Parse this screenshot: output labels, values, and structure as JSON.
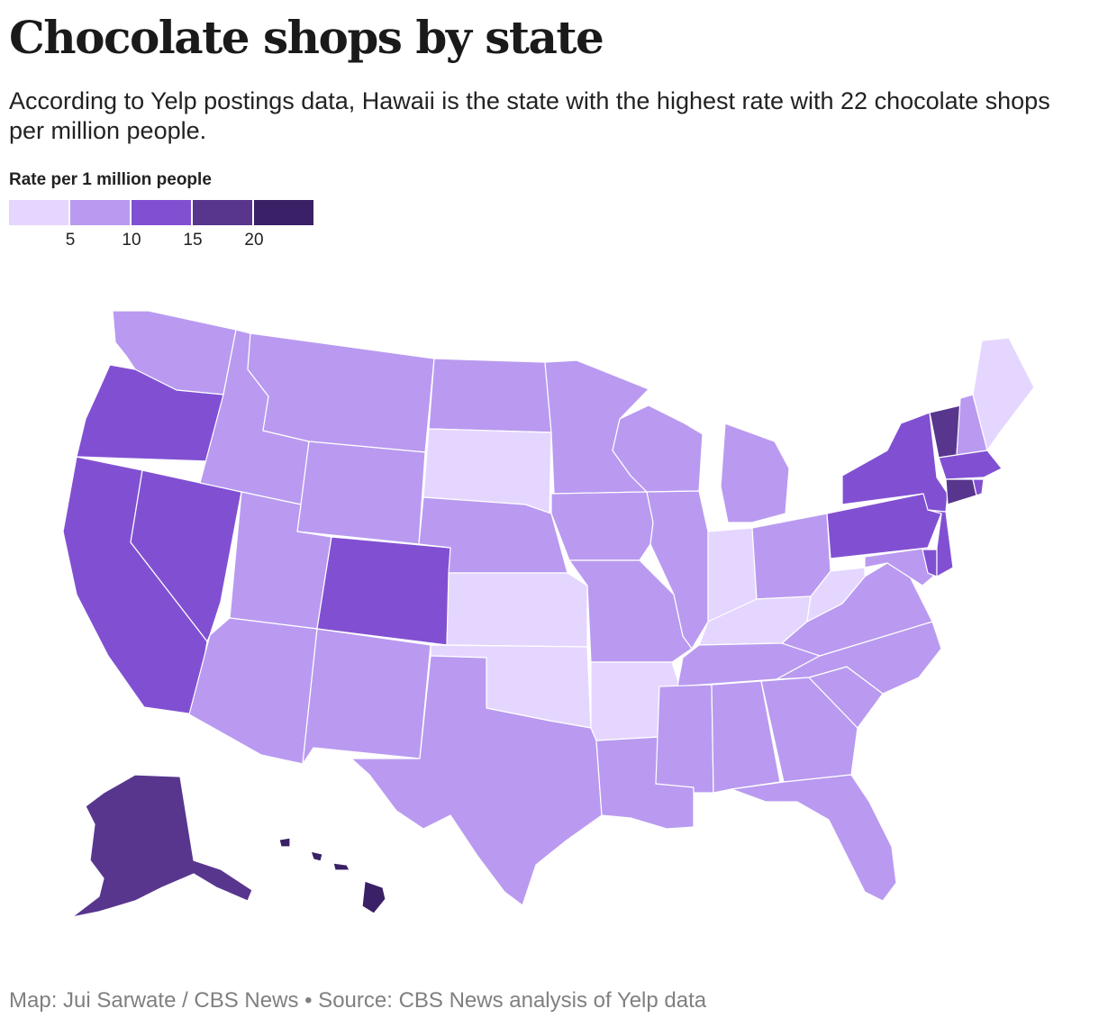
{
  "title": "Chocolate shops by state",
  "subtitle": "According to Yelp postings data, Hawaii is the state with the highest rate with 22 chocolate shops per million people.",
  "legend": {
    "title": "Rate per 1 million people",
    "bins": [
      {
        "range": [
          0,
          5
        ],
        "color": "#e5d6ff"
      },
      {
        "range": [
          5,
          10
        ],
        "color": "#b99af0"
      },
      {
        "range": [
          10,
          15
        ],
        "color": "#8150d2"
      },
      {
        "range": [
          15,
          20
        ],
        "color": "#58368e"
      },
      {
        "range": [
          20,
          25
        ],
        "color": "#3a2066"
      }
    ],
    "ticks": [
      "5",
      "10",
      "15",
      "20"
    ]
  },
  "map": {
    "type": "choropleth",
    "states": [
      {
        "state": "Washington",
        "bin": 1
      },
      {
        "state": "Oregon",
        "bin": 2
      },
      {
        "state": "California",
        "bin": 2
      },
      {
        "state": "Nevada",
        "bin": 2
      },
      {
        "state": "Idaho",
        "bin": 1
      },
      {
        "state": "Montana",
        "bin": 1
      },
      {
        "state": "Wyoming",
        "bin": 1
      },
      {
        "state": "Utah",
        "bin": 1
      },
      {
        "state": "Arizona",
        "bin": 1
      },
      {
        "state": "Colorado",
        "bin": 2
      },
      {
        "state": "New Mexico",
        "bin": 1
      },
      {
        "state": "North Dakota",
        "bin": 1
      },
      {
        "state": "South Dakota",
        "bin": 0
      },
      {
        "state": "Nebraska",
        "bin": 1
      },
      {
        "state": "Kansas",
        "bin": 0
      },
      {
        "state": "Oklahoma",
        "bin": 0
      },
      {
        "state": "Texas",
        "bin": 1
      },
      {
        "state": "Minnesota",
        "bin": 1
      },
      {
        "state": "Iowa",
        "bin": 1
      },
      {
        "state": "Missouri",
        "bin": 1
      },
      {
        "state": "Arkansas",
        "bin": 0
      },
      {
        "state": "Louisiana",
        "bin": 1
      },
      {
        "state": "Wisconsin",
        "bin": 1
      },
      {
        "state": "Illinois",
        "bin": 1
      },
      {
        "state": "Michigan",
        "bin": 1
      },
      {
        "state": "Indiana",
        "bin": 0
      },
      {
        "state": "Ohio",
        "bin": 1
      },
      {
        "state": "Kentucky",
        "bin": 0
      },
      {
        "state": "Tennessee",
        "bin": 1
      },
      {
        "state": "Mississippi",
        "bin": 1
      },
      {
        "state": "Alabama",
        "bin": 1
      },
      {
        "state": "Georgia",
        "bin": 1
      },
      {
        "state": "Florida",
        "bin": 1
      },
      {
        "state": "South Carolina",
        "bin": 1
      },
      {
        "state": "North Carolina",
        "bin": 1
      },
      {
        "state": "Virginia",
        "bin": 1
      },
      {
        "state": "West Virginia",
        "bin": 0
      },
      {
        "state": "Maryland",
        "bin": 1
      },
      {
        "state": "Delaware",
        "bin": 2
      },
      {
        "state": "Pennsylvania",
        "bin": 2
      },
      {
        "state": "New Jersey",
        "bin": 2
      },
      {
        "state": "New York",
        "bin": 2
      },
      {
        "state": "Connecticut",
        "bin": 3
      },
      {
        "state": "Rhode Island",
        "bin": 2
      },
      {
        "state": "Massachusetts",
        "bin": 2
      },
      {
        "state": "Vermont",
        "bin": 3
      },
      {
        "state": "New Hampshire",
        "bin": 1
      },
      {
        "state": "Maine",
        "bin": 0
      },
      {
        "state": "Alaska",
        "bin": 3
      },
      {
        "state": "Hawaii",
        "bin": 4
      }
    ]
  },
  "footer": "Map: Jui Sarwate / CBS News • Source: CBS News analysis of Yelp data"
}
